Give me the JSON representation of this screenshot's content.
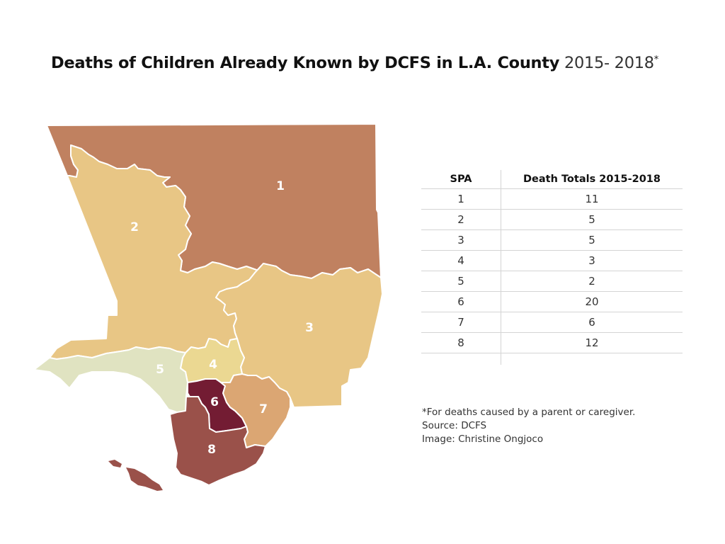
{
  "title": {
    "bold_text": "Deaths of Children Already Known by DCFS in L.A. County",
    "light_text": "2015- 2018",
    "marker": "*"
  },
  "map": {
    "regions": [
      {
        "spa": "1",
        "label": "1",
        "color": "#c08160"
      },
      {
        "spa": "2",
        "label": "2",
        "color": "#e8c685"
      },
      {
        "spa": "3",
        "label": "3",
        "color": "#e8c685"
      },
      {
        "spa": "4",
        "label": "4",
        "color": "#ebd892"
      },
      {
        "spa": "5",
        "label": "5",
        "color": "#e0e3c1"
      },
      {
        "spa": "6",
        "label": "6",
        "color": "#731c33"
      },
      {
        "spa": "7",
        "label": "7",
        "color": "#dba673"
      },
      {
        "spa": "8",
        "label": "8",
        "color": "#9a514a"
      }
    ]
  },
  "table": {
    "headers": [
      "SPA",
      "Death Totals 2015-2018"
    ],
    "rows": [
      {
        "spa": "1",
        "deaths": "11"
      },
      {
        "spa": "2",
        "deaths": "5"
      },
      {
        "spa": "3",
        "deaths": "5"
      },
      {
        "spa": "4",
        "deaths": "3"
      },
      {
        "spa": "5",
        "deaths": "2"
      },
      {
        "spa": "6",
        "deaths": "20"
      },
      {
        "spa": "7",
        "deaths": "6"
      },
      {
        "spa": "8",
        "deaths": "12"
      }
    ]
  },
  "notes": {
    "footnote": "*For deaths caused by a parent or caregiver.",
    "source": "Source: DCFS",
    "credit": "Image: Christine Ongjoco"
  }
}
